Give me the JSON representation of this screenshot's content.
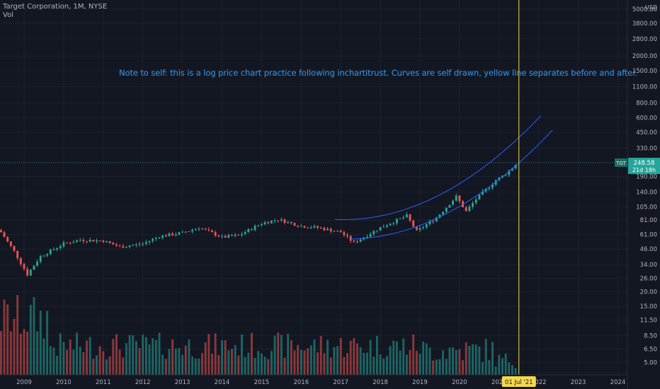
{
  "header": {
    "title": "Target Corporation, 1M, NYSE",
    "vol_label": "Vol"
  },
  "note": "Note to self: this is a log price chart practice following inchartitrust. Curves are self drawn, yellow line separates before and after.",
  "price_axis": {
    "currency": "USD",
    "ticks": [
      "5000.00",
      "3800.00",
      "2800.00",
      "2000.00",
      "1500.00",
      "1100.00",
      "800.00",
      "600.00",
      "450.00",
      "330.00",
      "250.00",
      "190.00",
      "140.00",
      "105.00",
      "81.00",
      "61.00",
      "46.00",
      "34.00",
      "26.00",
      "20.00",
      "15.00",
      "11.50",
      "8.50",
      "6.50",
      "5.00"
    ]
  },
  "time_axis": {
    "ticks": [
      "2009",
      "2010",
      "2011",
      "2012",
      "2013",
      "2014",
      "2015",
      "2016",
      "2017",
      "2018",
      "2019",
      "2020",
      "2021",
      "2022",
      "2023",
      "2024"
    ],
    "cursor_label": "01 Jul '21"
  },
  "last_price": {
    "symbol": "TGT",
    "price": "248.58",
    "countdown": "21d 18h"
  },
  "colors": {
    "background": "#131722",
    "up": "#26a69a",
    "down": "#ef5350",
    "note": "#2f9bf2",
    "curves": "#2962ff",
    "cursor": "#f7d84a",
    "price_label": "#26a69a"
  },
  "chart_data": {
    "type": "candlestick",
    "interval": "1M",
    "scale": "log",
    "ylim": [
      4.5,
      5000
    ],
    "xlim": [
      "2008-05",
      "2024-12"
    ],
    "volume": "histogram",
    "price_path": [
      {
        "date": "2008-06",
        "close": 64
      },
      {
        "date": "2008-10",
        "close": 44
      },
      {
        "date": "2009-02",
        "close": 28
      },
      {
        "date": "2009-06",
        "close": 40
      },
      {
        "date": "2010-01",
        "close": 51
      },
      {
        "date": "2010-06",
        "close": 55
      },
      {
        "date": "2011-01",
        "close": 54
      },
      {
        "date": "2011-06",
        "close": 48
      },
      {
        "date": "2012-01",
        "close": 51
      },
      {
        "date": "2012-06",
        "close": 59
      },
      {
        "date": "2013-01",
        "close": 63
      },
      {
        "date": "2013-06",
        "close": 70
      },
      {
        "date": "2014-01",
        "close": 58
      },
      {
        "date": "2014-06",
        "close": 60
      },
      {
        "date": "2015-01",
        "close": 76
      },
      {
        "date": "2015-06",
        "close": 82
      },
      {
        "date": "2016-01",
        "close": 72
      },
      {
        "date": "2016-06",
        "close": 70
      },
      {
        "date": "2017-01",
        "close": 64
      },
      {
        "date": "2017-05",
        "close": 52
      },
      {
        "date": "2018-01",
        "close": 70
      },
      {
        "date": "2018-09",
        "close": 88
      },
      {
        "date": "2018-12",
        "close": 65
      },
      {
        "date": "2019-06",
        "close": 85
      },
      {
        "date": "2019-12",
        "close": 128
      },
      {
        "date": "2020-03",
        "close": 96
      },
      {
        "date": "2020-06",
        "close": 122
      },
      {
        "date": "2020-12",
        "close": 176
      },
      {
        "date": "2021-03",
        "close": 200
      },
      {
        "date": "2021-06",
        "close": 240
      }
    ]
  }
}
